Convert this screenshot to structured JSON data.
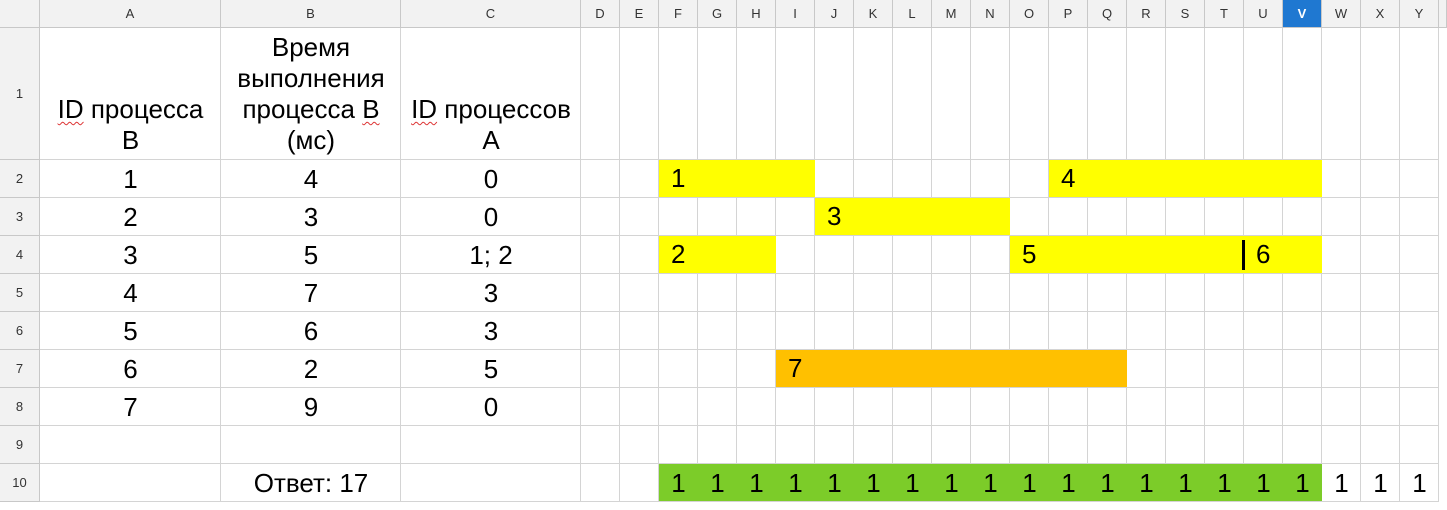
{
  "columns": [
    "A",
    "B",
    "C",
    "D",
    "E",
    "F",
    "G",
    "H",
    "I",
    "J",
    "K",
    "L",
    "M",
    "N",
    "O",
    "P",
    "Q",
    "R",
    "S",
    "T",
    "U",
    "V",
    "W",
    "X",
    "Y"
  ],
  "selected_column": "V",
  "rows": [
    "1",
    "2",
    "3",
    "4",
    "5",
    "6",
    "7",
    "8",
    "9",
    "10"
  ],
  "headers": {
    "a": [
      "ID",
      "процесса",
      "В"
    ],
    "b": [
      "Время",
      "выполнения",
      "процесса В",
      "(мс)"
    ],
    "c": [
      "ID",
      "процессов",
      "А"
    ]
  },
  "table": [
    [
      "1",
      "4",
      "0"
    ],
    [
      "2",
      "3",
      "0"
    ],
    [
      "3",
      "5",
      "1; 2"
    ],
    [
      "4",
      "7",
      "3"
    ],
    [
      "5",
      "6",
      "3"
    ],
    [
      "6",
      "2",
      "5"
    ],
    [
      "7",
      "9",
      "0"
    ]
  ],
  "answer": "Ответ: 17",
  "gantt": [
    {
      "label": "1",
      "row": 2,
      "col": "F",
      "span": 4,
      "color": "#ffff00"
    },
    {
      "label": "4",
      "row": 2,
      "col": "P",
      "span": 7,
      "color": "#ffff00"
    },
    {
      "label": "3",
      "row": 3,
      "col": "J",
      "span": 5,
      "color": "#ffff00"
    },
    {
      "label": "2",
      "row": 4,
      "col": "F",
      "span": 3,
      "color": "#ffff00"
    },
    {
      "label": "5",
      "row": 4,
      "col": "O",
      "span": 6,
      "color": "#ffff00"
    },
    {
      "label": "6",
      "row": 4,
      "col": "U",
      "span": 2,
      "color": "#ffff00"
    },
    {
      "label": "7",
      "row": 7,
      "col": "I",
      "span": 9,
      "color": "#ffc000"
    }
  ],
  "green_color": "#7ccc29",
  "ones_row": {
    "cols": [
      "F",
      "G",
      "H",
      "I",
      "J",
      "K",
      "L",
      "M",
      "N",
      "O",
      "P",
      "Q",
      "R",
      "S",
      "T",
      "U",
      "V",
      "W",
      "X",
      "Y"
    ],
    "values": [
      "1",
      "1",
      "1",
      "1",
      "1",
      "1",
      "1",
      "1",
      "1",
      "1",
      "1",
      "1",
      "1",
      "1",
      "1",
      "1",
      "1",
      "1",
      "1",
      "1"
    ],
    "green_count": 17
  }
}
